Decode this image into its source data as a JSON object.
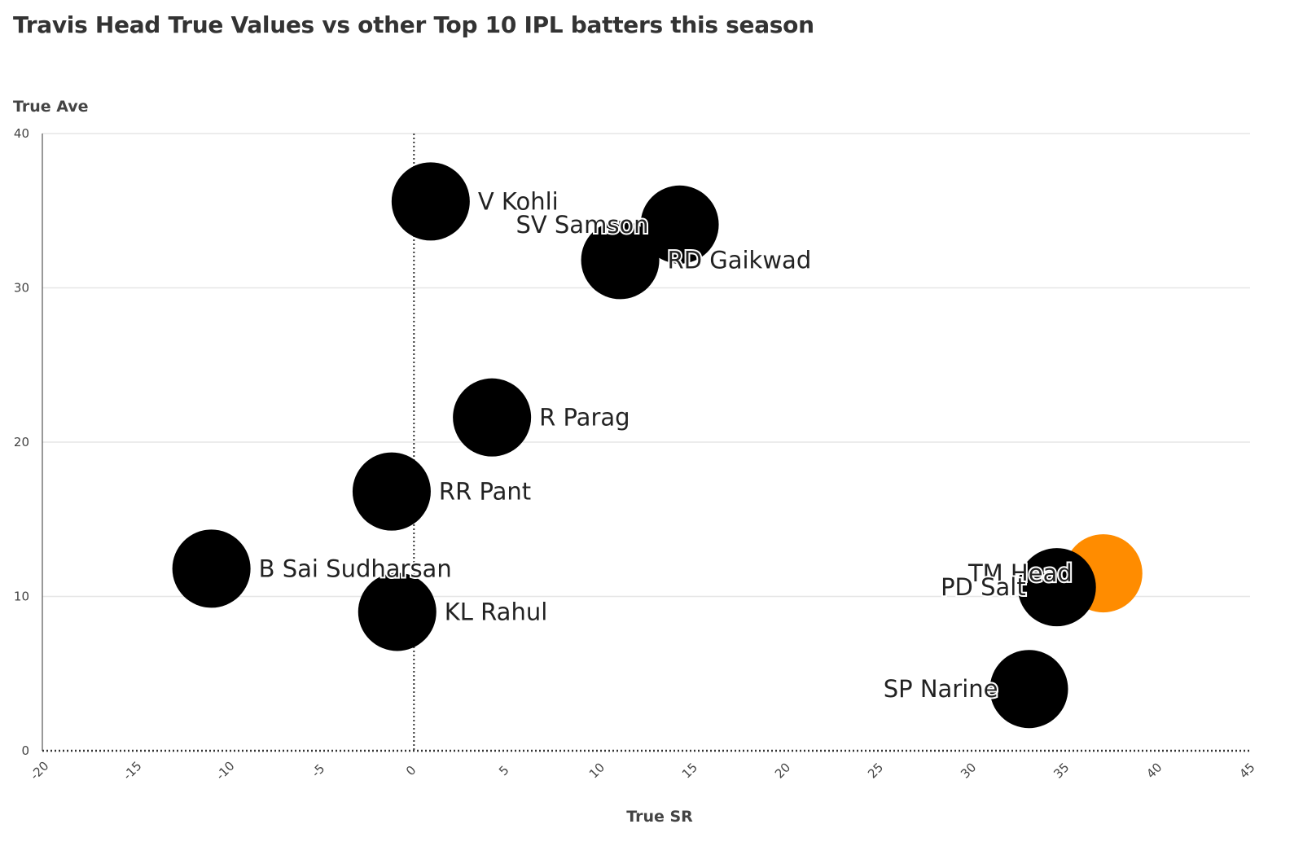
{
  "chart_data": {
    "type": "scatter",
    "title": "Travis Head True Values vs other Top 10 IPL batters this season",
    "xlabel": "True SR",
    "ylabel": "True Ave",
    "xlim": [
      -20,
      45
    ],
    "ylim": [
      0,
      40
    ],
    "xticks": [
      "-20",
      "-15",
      "-10",
      "-5",
      "0",
      "5",
      "10",
      "15",
      "20",
      "25",
      "30",
      "35",
      "40",
      "45"
    ],
    "yticks": [
      "0",
      "10",
      "20",
      "30",
      "40"
    ],
    "grid": "horizontal",
    "reference_line_x": 0,
    "reference_line_y": 0,
    "points": [
      {
        "name": "V Kohli",
        "x": 0.9,
        "y": 35.6,
        "color": "#000000",
        "label_side": "right"
      },
      {
        "name": "SV Samson",
        "x": 14.3,
        "y": 34.1,
        "color": "#000000",
        "label_side": "left"
      },
      {
        "name": "RD Gaikwad",
        "x": 11.1,
        "y": 31.8,
        "color": "#000000",
        "label_side": "right"
      },
      {
        "name": "R Parag",
        "x": 4.2,
        "y": 21.6,
        "color": "#000000",
        "label_side": "right"
      },
      {
        "name": "RR Pant",
        "x": -1.2,
        "y": 16.8,
        "color": "#000000",
        "label_side": "right"
      },
      {
        "name": "B Sai Sudharsan",
        "x": -10.9,
        "y": 11.8,
        "color": "#000000",
        "label_side": "right"
      },
      {
        "name": "KL Rahul",
        "x": -0.9,
        "y": 9.0,
        "color": "#000000",
        "label_side": "right"
      },
      {
        "name": "TM Head",
        "x": 37.1,
        "y": 11.5,
        "color": "#ff8c00",
        "label_side": "left"
      },
      {
        "name": "PD Salt",
        "x": 34.6,
        "y": 10.6,
        "color": "#000000",
        "label_side": "left"
      },
      {
        "name": "SP Narine",
        "x": 33.1,
        "y": 4.0,
        "color": "#000000",
        "label_side": "left"
      }
    ]
  }
}
